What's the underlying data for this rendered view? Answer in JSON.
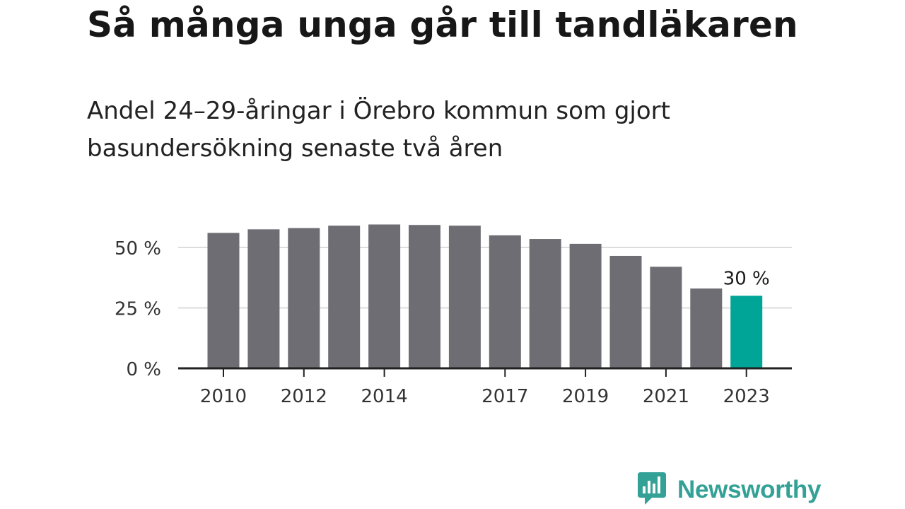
{
  "title": "Så många unga går till tandläkaren",
  "subtitle": "Andel 24–29-åringar i Örebro kommun som gjort basundersökning senaste två åren",
  "logo": {
    "text": "Newsworthy",
    "icon": "bar-chart-speech-bubble-icon",
    "color": "#33a196"
  },
  "chart_data": {
    "type": "bar",
    "categories": [
      "2010",
      "2011",
      "2012",
      "2013",
      "2014",
      "2015",
      "2016",
      "2017",
      "2018",
      "2019",
      "2020",
      "2021",
      "2022",
      "2023"
    ],
    "values": [
      56,
      57.5,
      58,
      59,
      59.5,
      59.3,
      59,
      55,
      53.5,
      51.5,
      46.5,
      42,
      33,
      30
    ],
    "x_tick_labels": [
      "2010",
      "2012",
      "2014",
      "2017",
      "2019",
      "2021",
      "2023"
    ],
    "y_ticks": [
      0,
      25,
      50
    ],
    "y_tick_labels": [
      "0 %",
      "25 %",
      "50 %"
    ],
    "ylim": [
      0,
      60
    ],
    "grid": true,
    "colors": {
      "bar": "#6e6d73",
      "highlight": "#00a597",
      "grid": "#dddddd",
      "axis": "#222222"
    },
    "highlight_index": 13,
    "annotation": "30 %"
  }
}
